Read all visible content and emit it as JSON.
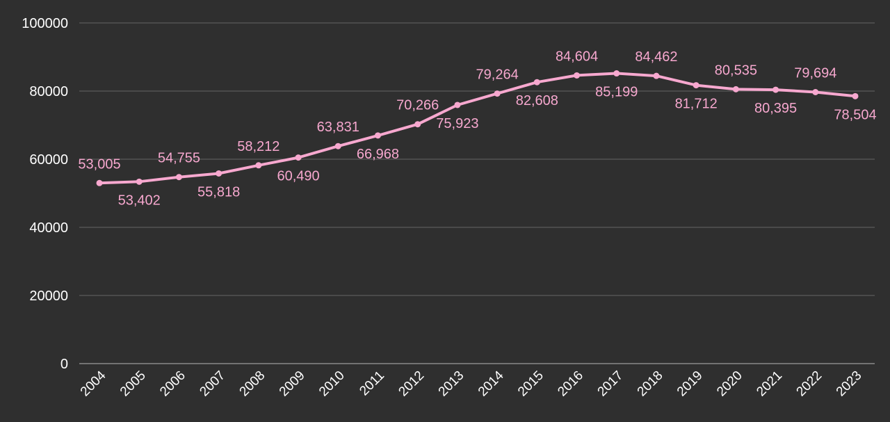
{
  "chart_data": {
    "type": "line",
    "title": "",
    "xlabel": "",
    "ylabel": "",
    "categories": [
      "2004",
      "2005",
      "2006",
      "2007",
      "2008",
      "2009",
      "2010",
      "2011",
      "2012",
      "2013",
      "2014",
      "2015",
      "2016",
      "2017",
      "2018",
      "2019",
      "2020",
      "2021",
      "2022",
      "2023"
    ],
    "series": [
      {
        "values": [
          53005,
          53402,
          54755,
          55818,
          58212,
          60490,
          63831,
          66968,
          70266,
          75923,
          79264,
          82608,
          84604,
          85199,
          84462,
          81712,
          80535,
          80395,
          79694,
          78504
        ],
        "labels": [
          "53,005",
          "53,402",
          "54,755",
          "55,818",
          "58,212",
          "60,490",
          "63,831",
          "66,968",
          "70,266",
          "75,923",
          "79,264",
          "82,608",
          "84,604",
          "85,199",
          "84,462",
          "81,712",
          "80,535",
          "80,395",
          "79,694",
          "78,504"
        ]
      }
    ],
    "ylim": [
      0,
      100000
    ],
    "yticks": [
      0,
      20000,
      40000,
      60000,
      80000,
      100000
    ],
    "ytick_labels": [
      "0",
      "20000",
      "40000",
      "60000",
      "80000",
      "100000"
    ],
    "grid": true,
    "legend": "none",
    "colors": {
      "background": "#2f2f2f",
      "line": "#f7a8cf",
      "grid": "#5a5a5a",
      "text": "#ffffff"
    }
  }
}
